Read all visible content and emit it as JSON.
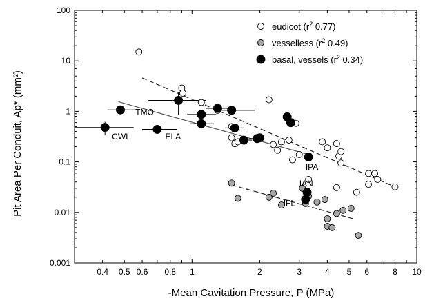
{
  "chart_data": {
    "type": "scatter",
    "xlabel": "-Mean Cavitation Pressure, P (MPa)",
    "ylabel": "Pit Area Per Conduit, Ap* (mm²)",
    "x_scale": "log",
    "y_scale": "log",
    "xlim": [
      0.3,
      10
    ],
    "ylim": [
      0.001,
      100
    ],
    "grid": false,
    "legend_position": "top-right",
    "x_ticks": [
      {
        "value": 0.4,
        "label": "0.4"
      },
      {
        "value": 0.5,
        "label": "0.5"
      },
      {
        "value": 0.6,
        "label": "0.6"
      },
      {
        "value": 0.8,
        "label": "0.8"
      },
      {
        "value": 1,
        "label": "1"
      },
      {
        "value": 2,
        "label": "2"
      },
      {
        "value": 3,
        "label": "3"
      },
      {
        "value": 4,
        "label": "4"
      },
      {
        "value": 5,
        "label": "5"
      },
      {
        "value": 6,
        "label": "6"
      },
      {
        "value": 8,
        "label": "8"
      },
      {
        "value": 10,
        "label": "10"
      }
    ],
    "y_ticks": [
      {
        "value": 0.001,
        "label": "0.001"
      },
      {
        "value": 0.01,
        "label": "0.01"
      },
      {
        "value": 0.1,
        "label": "0.1"
      },
      {
        "value": 1,
        "label": "1"
      },
      {
        "value": 10,
        "label": "10"
      },
      {
        "value": 100,
        "label": "100"
      }
    ],
    "legend": [
      {
        "key": "eudicot",
        "name": "eudicot (r",
        "sup": "2",
        "after": " 0.77)",
        "fill": "#ffffff"
      },
      {
        "key": "vesselless",
        "name": "vesselless (r",
        "sup": "2",
        "after": " 0.49)",
        "fill": "#a8a8a8"
      },
      {
        "key": "basal",
        "name": "basal, vessels (r",
        "sup": "2",
        "after": " 0.34)",
        "fill": "#000000"
      }
    ],
    "series": [
      {
        "key": "eudicot",
        "fill": "#ffffff",
        "fit": {
          "style": "dashed",
          "from": [
            0.6,
            4.6
          ],
          "to": [
            8,
            0.032
          ]
        },
        "points": [
          [
            0.58,
            15
          ],
          [
            0.9,
            2.9
          ],
          [
            0.91,
            2.3
          ],
          [
            1.1,
            1.5
          ],
          [
            1.3,
            1.05
          ],
          [
            1.5,
            0.5
          ],
          [
            1.5,
            0.3
          ],
          [
            1.55,
            0.23
          ],
          [
            1.6,
            0.25
          ],
          [
            2.2,
            1.7
          ],
          [
            2.3,
            0.22
          ],
          [
            2.4,
            0.17
          ],
          [
            2.5,
            0.25
          ],
          [
            2.7,
            0.27
          ],
          [
            2.8,
            0.11
          ],
          [
            2.9,
            0.58
          ],
          [
            3.0,
            0.14
          ],
          [
            3.8,
            0.25
          ],
          [
            4.0,
            0.19
          ],
          [
            4.4,
            0.23
          ],
          [
            4.5,
            0.13
          ],
          [
            4.6,
            0.16
          ],
          [
            4.6,
            0.095
          ],
          [
            4.4,
            0.031
          ],
          [
            5.4,
            0.025
          ],
          [
            6.1,
            0.059
          ],
          [
            6.1,
            0.036
          ],
          [
            6.5,
            0.059
          ],
          [
            6.7,
            0.045
          ],
          [
            8.0,
            0.032
          ],
          [
            3.3,
            0.045
          ]
        ],
        "error_bars": []
      },
      {
        "key": "vesselless",
        "fill": "#a8a8a8",
        "fit": {
          "style": "dashed",
          "from": [
            1.5,
            0.035
          ],
          "to": [
            5.2,
            0.0075
          ]
        },
        "points": [
          [
            1.5,
            0.038
          ],
          [
            1.6,
            0.019
          ],
          [
            2.2,
            0.02
          ],
          [
            2.3,
            0.024
          ],
          [
            2.5,
            0.014
          ],
          [
            3.1,
            0.03
          ],
          [
            3.2,
            0.015
          ],
          [
            3.3,
            0.021
          ],
          [
            3.6,
            0.016
          ],
          [
            3.9,
            0.018
          ],
          [
            4.0,
            0.0075
          ],
          [
            4.0,
            0.0053
          ],
          [
            4.2,
            0.005
          ],
          [
            4.4,
            0.0095
          ],
          [
            4.7,
            0.011
          ],
          [
            5.1,
            0.012
          ],
          [
            5.5,
            0.0035
          ]
        ],
        "error_bars": []
      },
      {
        "key": "basal",
        "fill": "#000000",
        "fit": {
          "style": "solid",
          "from": [
            0.47,
            1.55
          ],
          "to": [
            3.3,
            0.14
          ]
        },
        "points": [
          [
            0.41,
            0.48
          ],
          [
            0.48,
            1.07
          ],
          [
            0.7,
            0.44
          ],
          [
            0.87,
            1.65
          ],
          [
            1.1,
            0.87
          ],
          [
            1.1,
            0.57
          ],
          [
            1.3,
            1.15
          ],
          [
            1.5,
            1.05
          ],
          [
            1.55,
            0.47
          ],
          [
            1.7,
            0.27
          ],
          [
            1.95,
            0.29
          ],
          [
            2.0,
            0.3
          ],
          [
            2.65,
            0.78
          ],
          [
            2.75,
            0.6
          ],
          [
            3.2,
            0.018
          ],
          [
            3.25,
            0.025
          ],
          [
            3.3,
            0.125
          ]
        ],
        "error_bars": [
          {
            "x": 0.41,
            "y": 0.48,
            "xlo": 0.3,
            "xhi": 0.55,
            "ylo": 0.34,
            "yhi": 0.62
          },
          {
            "x": 0.48,
            "y": 1.07,
            "xlo": 0.42,
            "xhi": 0.57,
            "ylo": 0.9,
            "yhi": 1.25
          },
          {
            "x": 0.7,
            "y": 0.44,
            "xlo": 0.6,
            "xhi": 0.86,
            "ylo": 0.36,
            "yhi": 0.52
          },
          {
            "x": 0.87,
            "y": 1.65,
            "xlo": 0.64,
            "xhi": 1.15,
            "ylo": 0.85,
            "yhi": 2.4
          },
          {
            "x": 1.1,
            "y": 0.87,
            "xlo": 0.95,
            "xhi": 1.28,
            "ylo": 0.7,
            "yhi": 1.05
          },
          {
            "x": 1.1,
            "y": 0.57,
            "xlo": 0.98,
            "xhi": 1.25,
            "ylo": 0.46,
            "yhi": 0.72
          },
          {
            "x": 1.3,
            "y": 1.15,
            "xlo": 1.15,
            "xhi": 1.45,
            "ylo": 1.0,
            "yhi": 1.3
          },
          {
            "x": 1.5,
            "y": 1.05,
            "xlo": 1.3,
            "xhi": 1.9,
            "ylo": 0.9,
            "yhi": 1.2
          },
          {
            "x": 1.55,
            "y": 0.47,
            "xlo": 1.4,
            "xhi": 1.7,
            "ylo": 0.4,
            "yhi": 0.55
          },
          {
            "x": 1.7,
            "y": 0.27,
            "xlo": 1.55,
            "xhi": 1.85,
            "ylo": 0.23,
            "yhi": 0.31
          },
          {
            "x": 1.95,
            "y": 0.29,
            "xlo": 1.8,
            "xhi": 2.1,
            "ylo": 0.25,
            "yhi": 0.33
          },
          {
            "x": 2.65,
            "y": 0.78,
            "xlo": 2.55,
            "xhi": 2.78,
            "ylo": 0.68,
            "yhi": 0.88
          },
          {
            "x": 3.3,
            "y": 0.125,
            "xlo": 3.15,
            "xhi": 3.45,
            "ylo": 0.11,
            "yhi": 0.14
          }
        ]
      }
    ],
    "annotations": [
      {
        "text": "TMO",
        "x": 0.56,
        "y": 0.85
      },
      {
        "text": "CWI",
        "x": 0.44,
        "y": 0.28
      },
      {
        "text": "ELA",
        "x": 0.76,
        "y": 0.28
      },
      {
        "text": "IPA",
        "x": 3.2,
        "y": 0.07
      },
      {
        "text": "IAN",
        "x": 3.0,
        "y": 0.033
      },
      {
        "text": "IFL",
        "x": 2.55,
        "y": 0.0135
      }
    ]
  }
}
